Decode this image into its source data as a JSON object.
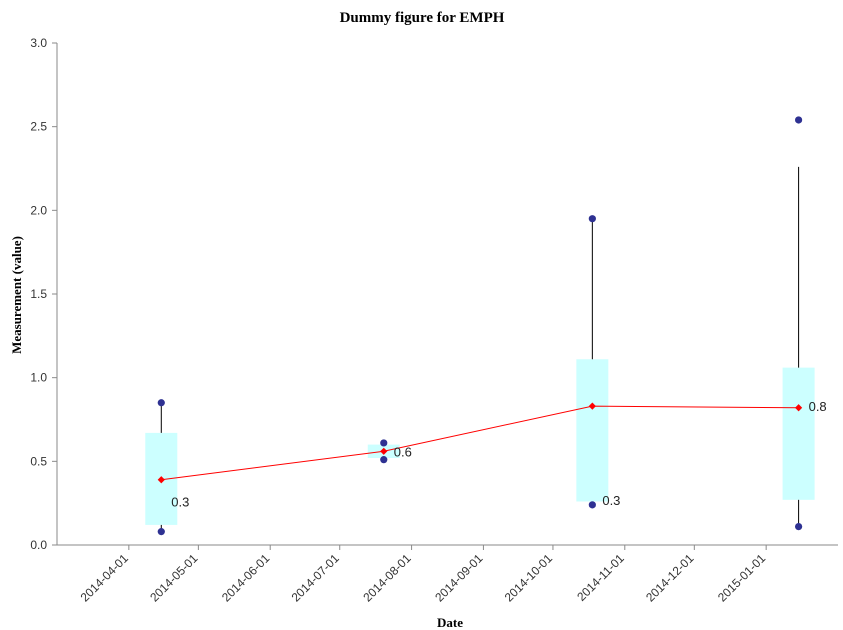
{
  "chart_data": {
    "type": "box",
    "title": "Dummy figure for EMPH",
    "xlabel": "Date",
    "ylabel": "Measurement (value)",
    "ylim": [
      0,
      3
    ],
    "yticks": [
      "0.0",
      "0.5",
      "1.0",
      "1.5",
      "2.0",
      "2.5",
      "3.0"
    ],
    "xlim": [
      "2014-03-01",
      "2015-02-01"
    ],
    "xticks": [
      "2014-04-01",
      "2014-05-01",
      "2014-06-01",
      "2014-07-01",
      "2014-08-01",
      "2014-09-01",
      "2014-10-01",
      "2014-11-01",
      "2014-12-01",
      "2015-01-01"
    ],
    "grid": false,
    "colors": {
      "box": "#ccffff",
      "whisker": "#000000",
      "point": "#2e3192",
      "mean": "#ff0000"
    },
    "groups": [
      {
        "date": "2014-04-15",
        "q1": 0.12,
        "q3": 0.67,
        "whisker_high": 0.85,
        "whisker_low": 0.08,
        "points": [
          0.85,
          0.08
        ],
        "mean": 0.39,
        "label": "0.3",
        "label_y": 0.26
      },
      {
        "date": "2014-07-20",
        "q1": 0.52,
        "q3": 0.6,
        "whisker_high": 0.61,
        "whisker_low": 0.51,
        "points": [
          0.61,
          0.51
        ],
        "mean": 0.56,
        "label": "0.6",
        "label_y": 0.56
      },
      {
        "date": "2014-10-18",
        "q1": 0.26,
        "q3": 1.11,
        "whisker_high": 1.95,
        "whisker_low": 0.24,
        "points": [
          1.95,
          0.24
        ],
        "mean": 0.83,
        "label": "0.3",
        "label_y": 0.27
      },
      {
        "date": "2015-01-15",
        "q1": 0.27,
        "q3": 1.06,
        "whisker_high": 2.26,
        "whisker_low": 0.11,
        "points": [
          2.54,
          0.11
        ],
        "mean": 0.82,
        "label": "0.8",
        "label_y": 0.83
      }
    ]
  }
}
